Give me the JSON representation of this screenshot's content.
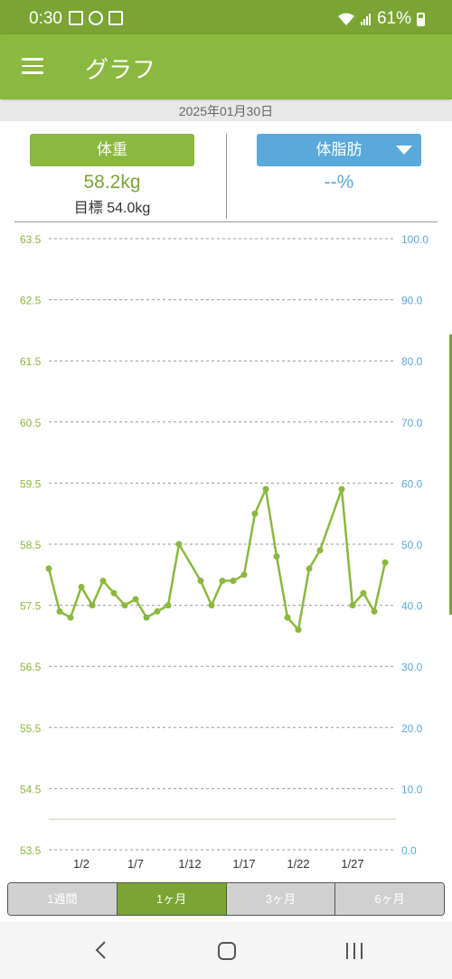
{
  "status_bar": {
    "time": "0:30",
    "battery": "61%"
  },
  "app_bar": {
    "title": "グラフ",
    "menu_icon": "hamburger-menu-icon"
  },
  "date": "2025年01月30日",
  "summary": {
    "weight_label": "体重",
    "weight_value": "58.2kg",
    "goal": "目標 54.0kg",
    "fat_label": "体脂肪",
    "fat_value": "--%"
  },
  "tabs": [
    {
      "label": "1週間",
      "active": false
    },
    {
      "label": "1ヶ月",
      "active": true
    },
    {
      "label": "3ヶ月",
      "active": false
    },
    {
      "label": "6ヶ月",
      "active": false
    }
  ],
  "colors": {
    "weight": "#8bb83e",
    "fat": "#5aa9db",
    "appbar": "#8bb83e"
  },
  "chart_data": {
    "type": "line",
    "series": [
      {
        "values": [
          [
            0,
            58.1
          ],
          [
            1,
            57.4
          ],
          [
            2,
            57.3
          ],
          [
            3,
            57.8
          ],
          [
            4,
            57.5
          ],
          [
            5,
            57.9
          ],
          [
            6,
            57.7
          ],
          [
            7,
            57.5
          ],
          [
            8,
            57.6
          ],
          [
            9,
            57.3
          ],
          [
            10,
            57.4
          ],
          [
            11,
            57.5
          ],
          [
            12,
            58.5
          ],
          [
            14,
            57.9
          ],
          [
            15,
            57.5
          ],
          [
            16,
            57.9
          ],
          [
            17,
            57.9
          ],
          [
            18,
            58.0
          ],
          [
            19,
            59.0
          ],
          [
            20,
            59.4
          ],
          [
            21,
            58.3
          ],
          [
            22,
            57.3
          ],
          [
            23,
            57.1
          ],
          [
            24,
            58.1
          ],
          [
            25,
            58.4
          ],
          [
            27,
            59.4
          ],
          [
            28,
            57.5
          ],
          [
            29,
            57.7
          ],
          [
            30,
            57.4
          ],
          [
            31,
            58.2
          ]
        ]
      }
    ],
    "x_tick_labels": [
      "1/2",
      "1/7",
      "1/12",
      "1/17",
      "1/22",
      "1/27"
    ],
    "x_tick_positions": [
      3,
      8,
      13,
      18,
      23,
      28
    ],
    "x_range": [
      0,
      32
    ],
    "y_left_ticks": [
      "63.5",
      "62.5",
      "61.5",
      "60.5",
      "59.5",
      "58.5",
      "57.5",
      "56.5",
      "55.5",
      "54.5",
      "53.5"
    ],
    "y_left_range": [
      53.5,
      63.5
    ],
    "y_right_ticks": [
      "100.0",
      "90.0",
      "80.0",
      "70.0",
      "60.0",
      "50.0",
      "40.0",
      "30.0",
      "20.0",
      "10.0",
      "0.0"
    ],
    "y_right_range": [
      0,
      100
    ],
    "goal_line": 54.0,
    "grid": true
  },
  "nav_bar": {
    "back": "back-icon",
    "home": "home-icon",
    "recent": "recent-apps-icon"
  }
}
